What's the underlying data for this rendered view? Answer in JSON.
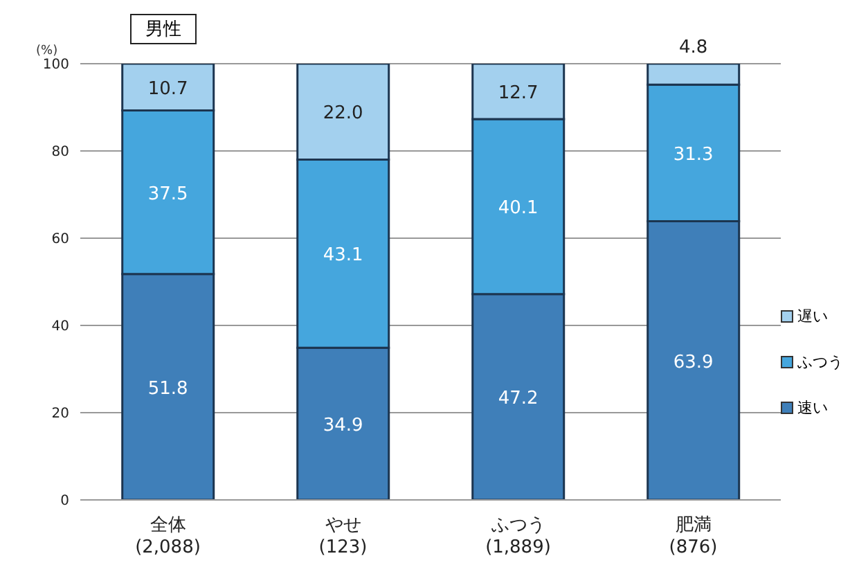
{
  "chart_data": {
    "type": "bar",
    "title": "男性",
    "ylabel": "(%)",
    "stacked": true,
    "categories": [
      "全体 (2,088)",
      "やせ (123)",
      "ふつう (1,889)",
      "肥満 (876)"
    ],
    "series": [
      {
        "name": "速い",
        "color": "#3f7fb9",
        "values": [
          51.8,
          34.9,
          47.2,
          63.9
        ]
      },
      {
        "name": "ふつう",
        "color": "#45a6dd",
        "values": [
          37.5,
          43.1,
          40.1,
          31.3
        ]
      },
      {
        "name": "遅い",
        "color": "#a3d0ee",
        "values": [
          10.7,
          22.0,
          12.7,
          4.8
        ]
      }
    ],
    "ylim": [
      0,
      100
    ],
    "yticks": [
      0,
      20,
      40,
      60,
      80,
      100
    ],
    "grid": "y",
    "legend": "right",
    "value_labels": [
      [
        "51.8",
        "34.9",
        "47.2",
        "63.9"
      ],
      [
        "37.5",
        "43.1",
        "40.1",
        "31.3"
      ],
      [
        "10.7",
        "22.0",
        "12.7",
        "4.8"
      ]
    ]
  }
}
